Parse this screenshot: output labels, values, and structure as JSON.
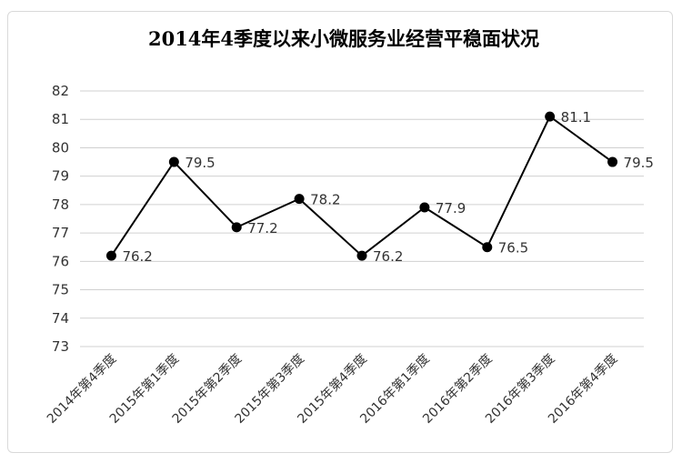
{
  "chart_data": {
    "type": "line",
    "title": "2014年4季度以来小微服务业经营平稳面状况",
    "xlabel": "",
    "ylabel": "",
    "categories": [
      "2014年第4季度",
      "2015年第1季度",
      "2015年第2季度",
      "2015年第3季度",
      "2015年第4季度",
      "2016年第1季度",
      "2016年第2季度",
      "2016年第3季度",
      "2016年第4季度"
    ],
    "series": [
      {
        "values": [
          76.2,
          79.5,
          77.2,
          78.2,
          76.2,
          77.9,
          76.5,
          81.1,
          79.5
        ],
        "data_labels": [
          "76.2",
          "79.5",
          "77.2",
          "78.2",
          "76.2",
          "77.9",
          "76.5",
          "81.1",
          "79.5"
        ],
        "color": "#000000"
      }
    ],
    "ylim": [
      73,
      82
    ],
    "yticks": [
      "73",
      "74",
      "75",
      "76",
      "77",
      "78",
      "79",
      "80",
      "81",
      "82"
    ],
    "grid": true,
    "legend": "none"
  }
}
